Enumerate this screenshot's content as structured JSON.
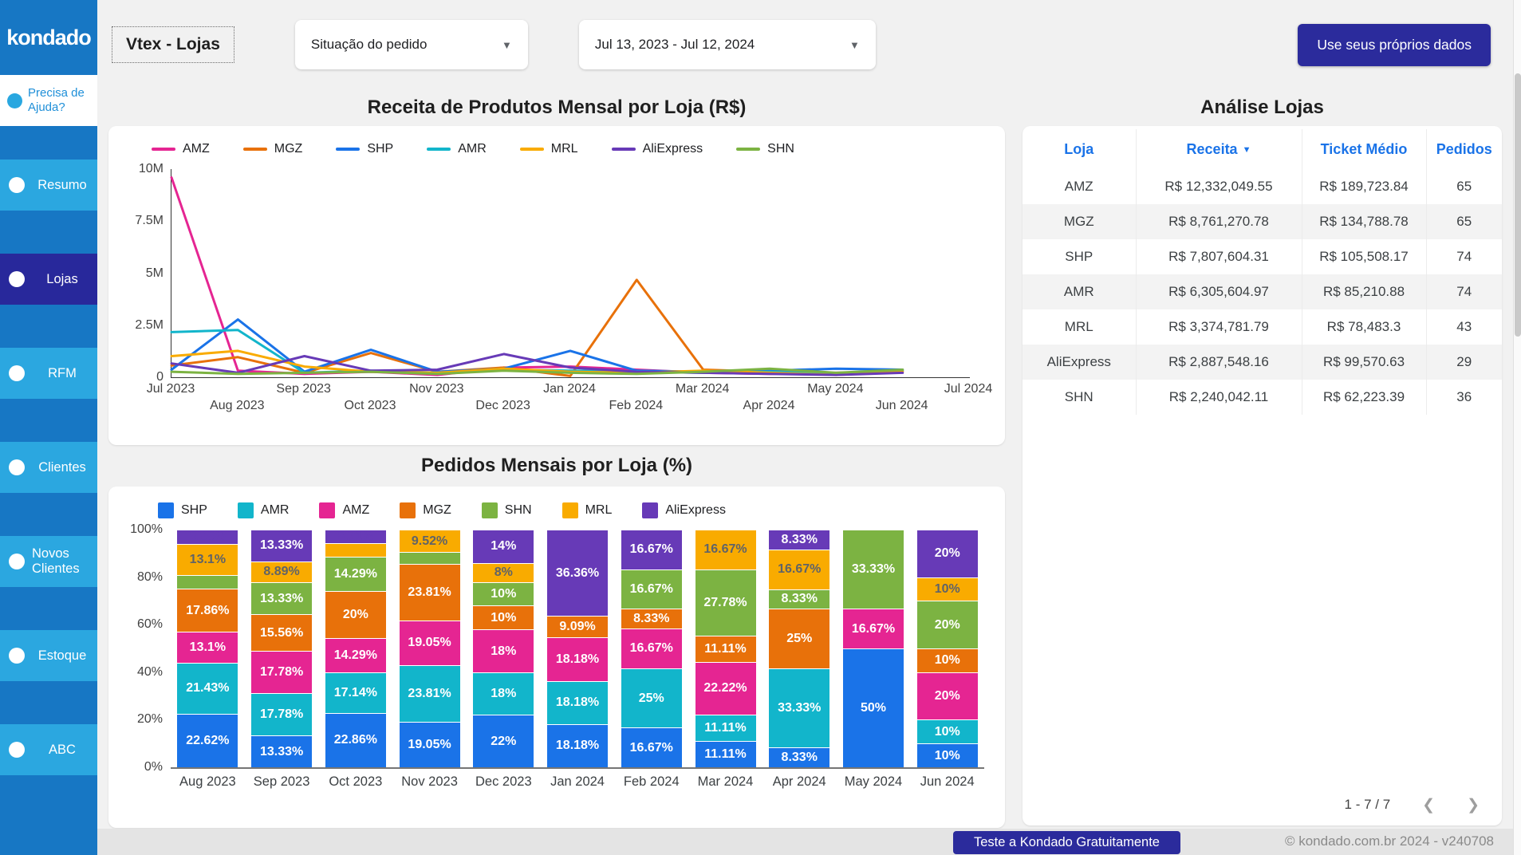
{
  "brand": "kondado",
  "sidebar": {
    "help_label": "Precisa de Ajuda?",
    "items": [
      {
        "label": "Resumo",
        "active": false
      },
      {
        "label": "Lojas",
        "active": true
      },
      {
        "label": "RFM",
        "active": false
      },
      {
        "label": "Clientes",
        "active": false
      },
      {
        "label": "Novos Clientes",
        "active": false
      },
      {
        "label": "Estoque",
        "active": false
      },
      {
        "label": "ABC",
        "active": false
      }
    ]
  },
  "header": {
    "page_title": "Vtex - Lojas",
    "filters": [
      {
        "label": "Situação do pedido"
      },
      {
        "label": "Jul 13, 2023 - Jul 12, 2024"
      }
    ],
    "cta": "Use seus próprios dados"
  },
  "table": {
    "title": "Análise Lojas",
    "columns": [
      "Loja",
      "Receita",
      "Ticket Médio",
      "Pedidos"
    ],
    "sorted_column": "Receita",
    "rows": [
      [
        "AMZ",
        "R$ 12,332,049.55",
        "R$ 189,723.84",
        "65"
      ],
      [
        "MGZ",
        "R$ 8,761,270.78",
        "R$ 134,788.78",
        "65"
      ],
      [
        "SHP",
        "R$ 7,807,604.31",
        "R$ 105,508.17",
        "74"
      ],
      [
        "AMR",
        "R$ 6,305,604.97",
        "R$ 85,210.88",
        "74"
      ],
      [
        "MRL",
        "R$ 3,374,781.79",
        "R$ 78,483.3",
        "43"
      ],
      [
        "AliExpress",
        "R$ 2,887,548.16",
        "R$ 99,570.63",
        "29"
      ],
      [
        "SHN",
        "R$ 2,240,042.11",
        "R$ 62,223.39",
        "36"
      ]
    ],
    "pagination": "1 - 7 / 7"
  },
  "footer": {
    "cta": "Teste a Kondado Gratuitamente",
    "copyright": "© kondado.com.br 2024 - v240708"
  },
  "colors": {
    "sidebar_blue": "#1777C4",
    "nav_light_blue": "#2BA7E0",
    "nav_active_navy": "#28289B",
    "cta_navy": "#2B2B9C",
    "table_header_blue": "#1A73E8"
  },
  "chart_data": [
    {
      "type": "line",
      "title": "Receita de Produtos Mensal por Loja (R$)",
      "ylabel": "",
      "xlabel": "",
      "ylim": [
        0,
        10000000
      ],
      "y_ticks": [
        "10M",
        "7.5M",
        "5M",
        "2.5M",
        "0"
      ],
      "x": [
        "Jul 2023",
        "Aug 2023",
        "Sep 2023",
        "Oct 2023",
        "Nov 2023",
        "Dec 2023",
        "Jan 2024",
        "Feb 2024",
        "Mar 2024",
        "Apr 2024",
        "May 2024",
        "Jun 2024"
      ],
      "x_axis_row1": [
        "Jul 2023",
        "Sep 2023",
        "Nov 2023",
        "Jan 2024",
        "Mar 2024",
        "May 2024",
        "Jul 2024"
      ],
      "x_axis_row2": [
        "Aug 2023",
        "Oct 2023",
        "Dec 2023",
        "Feb 2024",
        "Apr 2024",
        "Jun 2024"
      ],
      "x_slots": 13,
      "legend_position": "top",
      "grid": false,
      "series": [
        {
          "name": "AMZ",
          "color": "#E52592",
          "values": [
            9600000,
            350000,
            200000,
            300000,
            150000,
            500000,
            550000,
            400000,
            250000,
            200000,
            250000,
            300000
          ]
        },
        {
          "name": "MGZ",
          "color": "#E8710A",
          "values": [
            600000,
            1000000,
            250000,
            1200000,
            300000,
            500000,
            100000,
            4700000,
            400000,
            300000,
            200000,
            350000
          ]
        },
        {
          "name": "SHP",
          "color": "#1A73E8",
          "values": [
            400000,
            2800000,
            300000,
            1350000,
            300000,
            450000,
            1300000,
            350000,
            300000,
            350000,
            450000,
            400000
          ]
        },
        {
          "name": "AMR",
          "color": "#12B5CB",
          "values": [
            2200000,
            2300000,
            250000,
            350000,
            250000,
            400000,
            350000,
            300000,
            250000,
            300000,
            200000,
            350000
          ]
        },
        {
          "name": "MRL",
          "color": "#F9AB00",
          "values": [
            1050000,
            1300000,
            550000,
            300000,
            250000,
            450000,
            300000,
            250000,
            350000,
            250000,
            150000,
            300000
          ]
        },
        {
          "name": "AliExpress",
          "color": "#673AB7",
          "values": [
            700000,
            250000,
            1050000,
            350000,
            400000,
            1150000,
            500000,
            300000,
            250000,
            200000,
            150000,
            250000
          ]
        },
        {
          "name": "SHN",
          "color": "#7CB342",
          "values": [
            300000,
            200000,
            250000,
            300000,
            200000,
            350000,
            250000,
            200000,
            300000,
            450000,
            250000,
            400000
          ]
        }
      ]
    },
    {
      "type": "bar",
      "stacked": true,
      "unit": "%",
      "title": "Pedidos Mensais por Loja (%)",
      "ylim": [
        0,
        100
      ],
      "y_ticks": [
        "100%",
        "80%",
        "60%",
        "40%",
        "20%",
        "0%"
      ],
      "categories": [
        "Aug 2023",
        "Sep 2023",
        "Oct 2023",
        "Nov 2023",
        "Dec 2023",
        "Jan 2024",
        "Feb 2024",
        "Mar 2024",
        "Apr 2024",
        "May 2024",
        "Jun 2024"
      ],
      "legend_position": "top",
      "grid": false,
      "series": [
        {
          "name": "SHP",
          "color": "#1A73E8",
          "values": [
            22.62,
            13.33,
            22.86,
            19.05,
            22,
            18.18,
            16.67,
            11.11,
            8.33,
            50,
            10
          ]
        },
        {
          "name": "AMR",
          "color": "#12B5CB",
          "values": [
            21.43,
            17.78,
            17.14,
            23.81,
            18,
            18.18,
            25,
            11.11,
            33.33,
            0,
            10
          ]
        },
        {
          "name": "AMZ",
          "color": "#E52592",
          "values": [
            13.1,
            17.78,
            14.29,
            19.05,
            18,
            18.18,
            16.67,
            22.22,
            0,
            16.67,
            20
          ]
        },
        {
          "name": "MGZ",
          "color": "#E8710A",
          "values": [
            17.86,
            15.56,
            20,
            23.81,
            10,
            9.09,
            8.33,
            11.11,
            25,
            0,
            10
          ]
        },
        {
          "name": "SHN",
          "color": "#7CB342",
          "values": [
            5.95,
            13.33,
            14.29,
            4.76,
            10,
            0,
            16.67,
            27.78,
            8.33,
            33.33,
            20
          ]
        },
        {
          "name": "MRL",
          "color": "#F9AB00",
          "values": [
            13.1,
            8.89,
            5.71,
            9.52,
            8,
            0,
            0,
            16.67,
            16.67,
            0,
            10
          ]
        },
        {
          "name": "AliExpress",
          "color": "#673AB7",
          "values": [
            5.95,
            13.33,
            5.71,
            0,
            14,
            36.36,
            16.67,
            0,
            8.33,
            0,
            20
          ]
        }
      ]
    }
  ]
}
